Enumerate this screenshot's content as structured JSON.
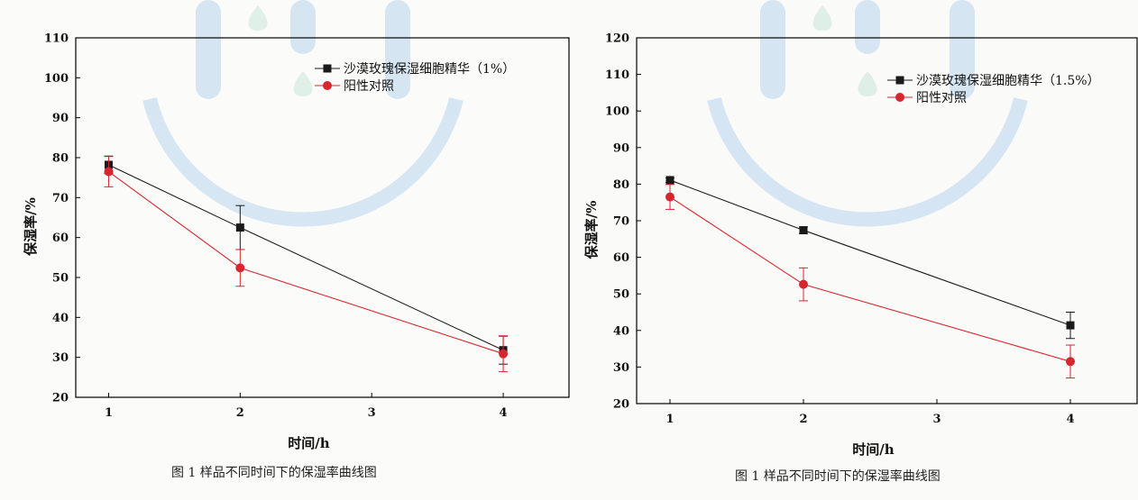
{
  "colors": {
    "series_black": "#1a1a1a",
    "series_red": "#d7262e",
    "axis": "#000000",
    "watermark": "#a9cdea"
  },
  "chart_data": [
    {
      "type": "line",
      "title": "",
      "xlabel": "时间/h",
      "ylabel": "保湿率/%",
      "xlim": [
        0.75,
        4.5
      ],
      "ylim": [
        20,
        110
      ],
      "xticks": [
        1,
        2,
        3,
        4
      ],
      "yticks": [
        20,
        30,
        40,
        50,
        60,
        70,
        80,
        90,
        100,
        110
      ],
      "grid": false,
      "legend_position": "top-right",
      "series": [
        {
          "name": "沙漠玫瑰保湿细胞精华（1%）",
          "marker": "square",
          "color": "#1a1a1a",
          "x": [
            1,
            2,
            4
          ],
          "y": [
            78.2,
            62.5,
            31.8
          ],
          "error": [
            2.2,
            5.5,
            3.5
          ]
        },
        {
          "name": "阳性对照",
          "marker": "circle",
          "color": "#d7262e",
          "x": [
            1,
            2,
            4
          ],
          "y": [
            76.5,
            52.4,
            30.9
          ],
          "error": [
            3.8,
            4.6,
            4.5
          ]
        }
      ],
      "caption": "图 1  样品不同时间下的保湿率曲线图"
    },
    {
      "type": "line",
      "title": "",
      "xlabel": "时间/h",
      "ylabel": "保湿率/%",
      "xlim": [
        0.75,
        4.5
      ],
      "ylim": [
        20,
        120
      ],
      "xticks": [
        1,
        2,
        3,
        4
      ],
      "yticks": [
        20,
        30,
        40,
        50,
        60,
        70,
        80,
        90,
        100,
        110,
        120
      ],
      "grid": false,
      "legend_position": "top-right",
      "series": [
        {
          "name": "沙漠玫瑰保湿细胞精华（1.5%）",
          "marker": "square",
          "color": "#1a1a1a",
          "x": [
            1,
            2,
            4
          ],
          "y": [
            81.1,
            67.4,
            41.4
          ],
          "error": [
            0.6,
            0.9,
            3.6
          ]
        },
        {
          "name": "阳性对照",
          "marker": "circle",
          "color": "#d7262e",
          "x": [
            1,
            2,
            4
          ],
          "y": [
            76.5,
            52.6,
            31.5
          ],
          "error": [
            3.4,
            4.5,
            4.5
          ]
        }
      ],
      "caption": "图 1  样品不同时间下的保湿率曲线图"
    }
  ]
}
